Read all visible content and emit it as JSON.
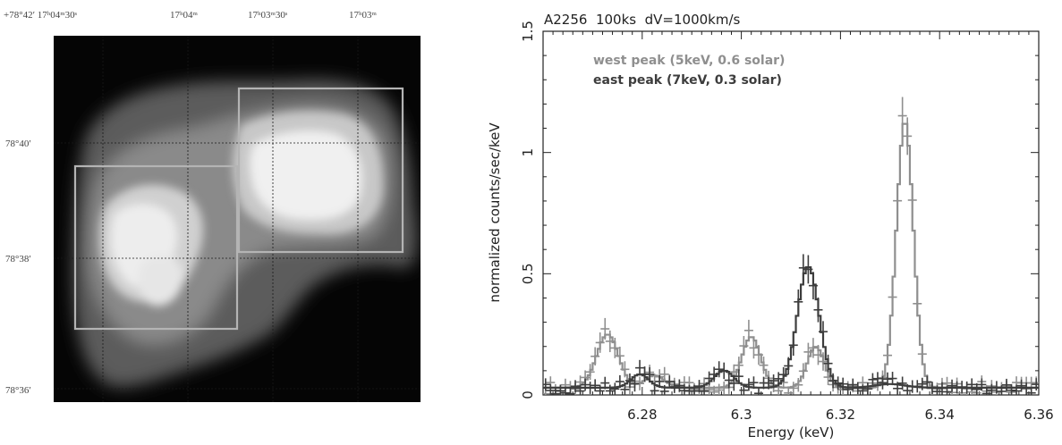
{
  "image_panel": {
    "ra_labels": [
      "+78°42′ 17ʰ04ᵐ30ˢ",
      "17ʰ04ᵐ",
      "17ʰ03ᵐ30ˢ",
      "17ʰ03ᵐ"
    ],
    "dec_labels": [
      "78°40′",
      "78°38′",
      "78°36′"
    ],
    "background_color": "#050505",
    "box_color": "#b4b4b4"
  },
  "chart_data": {
    "type": "line",
    "title": "A2256  100ks  dV=1000km/s",
    "xlabel": "Energy (keV)",
    "ylabel": "normalized counts/sec/keV",
    "xlim": [
      6.26,
      6.36
    ],
    "ylim": [
      0,
      1.5
    ],
    "x_ticks": [
      "6.28",
      "6.3",
      "6.32",
      "6.34",
      "6.36"
    ],
    "y_ticks": [
      "0",
      "0.5",
      "1",
      "1.5"
    ],
    "grid": false,
    "legend_position": "top-left",
    "series": [
      {
        "name": "west peak (5keV, 0.6 solar)",
        "color": "#8f8f8f",
        "peaks": [
          {
            "x": 6.273,
            "height": 0.22,
            "sigma": 0.0022
          },
          {
            "x": 6.302,
            "height": 0.21,
            "sigma": 0.0019
          },
          {
            "x": 6.315,
            "height": 0.17,
            "sigma": 0.0017
          },
          {
            "x": 6.333,
            "height": 1.1,
            "sigma": 0.0017
          },
          {
            "x": 6.2825,
            "height": 0.05,
            "sigma": 0.002
          }
        ],
        "baseline": 0.03
      },
      {
        "name": "east peak (7keV, 0.3 solar)",
        "color": "#3d3d3d",
        "peaks": [
          {
            "x": 6.2795,
            "height": 0.055,
            "sigma": 0.0018
          },
          {
            "x": 6.2965,
            "height": 0.07,
            "sigma": 0.002
          },
          {
            "x": 6.3135,
            "height": 0.5,
            "sigma": 0.0022
          },
          {
            "x": 6.33,
            "height": 0.015,
            "sigma": 0.003
          }
        ],
        "baseline": 0.03
      }
    ]
  }
}
